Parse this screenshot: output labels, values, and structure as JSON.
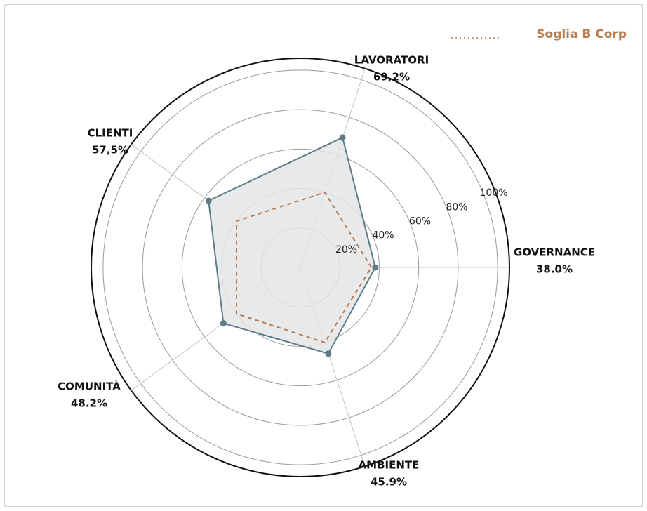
{
  "chart_data": {
    "type": "radar",
    "categories": [
      "GOVERNANCE",
      "LAVORATORI",
      "CLIENTI",
      "COMUNITÀ",
      "AMBIENTE"
    ],
    "series": [
      {
        "name": null,
        "color": "#5d7c88",
        "fill": "#e3e5e8",
        "values": [
          38.0,
          69.2,
          57.5,
          48.2,
          45.9
        ],
        "value_labels": [
          "38.0%",
          "69,2%",
          "57,5%",
          "48.2%",
          "45.9%"
        ]
      },
      {
        "name": "Soglia B Corp",
        "color": "#b97a4c",
        "dashed": true,
        "values": [
          36,
          40,
          40,
          40,
          40
        ]
      }
    ],
    "ylim": [
      0,
      106
    ],
    "yticks": [
      {
        "value": 20,
        "label": "20%"
      },
      {
        "value": 40,
        "label": "40%"
      },
      {
        "value": 60,
        "label": "60%"
      },
      {
        "value": 80,
        "label": "80%"
      },
      {
        "value": 100,
        "label": "100%"
      }
    ],
    "grid": true,
    "legend": "top-right"
  }
}
